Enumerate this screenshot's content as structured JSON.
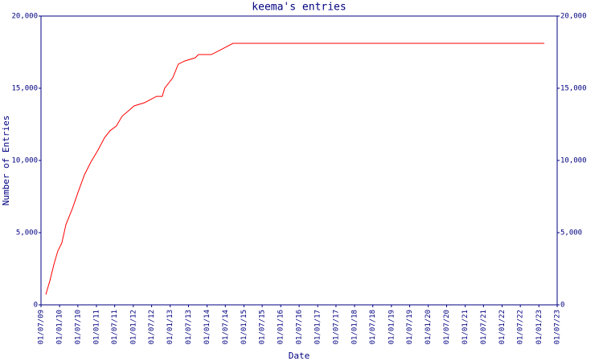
{
  "chart_data": {
    "type": "line",
    "title": "keema's entries",
    "xlabel": "Date",
    "ylabel": "Number of Entries",
    "xlim": [
      "2009-07-01",
      "2023-07-01"
    ],
    "xticks": [
      {
        "value": "2009-07-01",
        "label": "01/07/09"
      },
      {
        "value": "2010-01-01",
        "label": "01/01/10"
      },
      {
        "value": "2010-07-01",
        "label": "01/07/10"
      },
      {
        "value": "2011-01-01",
        "label": "01/01/11"
      },
      {
        "value": "2011-07-01",
        "label": "01/07/11"
      },
      {
        "value": "2012-01-01",
        "label": "01/01/12"
      },
      {
        "value": "2012-07-01",
        "label": "01/07/12"
      },
      {
        "value": "2013-01-01",
        "label": "01/01/13"
      },
      {
        "value": "2013-07-01",
        "label": "01/07/13"
      },
      {
        "value": "2014-01-01",
        "label": "01/01/14"
      },
      {
        "value": "2014-07-01",
        "label": "01/07/14"
      },
      {
        "value": "2015-01-01",
        "label": "01/01/15"
      },
      {
        "value": "2015-07-01",
        "label": "01/07/15"
      },
      {
        "value": "2016-01-01",
        "label": "01/01/16"
      },
      {
        "value": "2016-07-01",
        "label": "01/07/16"
      },
      {
        "value": "2017-01-01",
        "label": "01/01/17"
      },
      {
        "value": "2017-07-01",
        "label": "01/07/17"
      },
      {
        "value": "2018-01-01",
        "label": "01/01/18"
      },
      {
        "value": "2018-07-01",
        "label": "01/07/18"
      },
      {
        "value": "2019-01-01",
        "label": "01/01/19"
      },
      {
        "value": "2019-07-01",
        "label": "01/07/19"
      },
      {
        "value": "2020-01-01",
        "label": "01/01/20"
      },
      {
        "value": "2020-07-01",
        "label": "01/07/20"
      },
      {
        "value": "2021-01-01",
        "label": "01/01/21"
      },
      {
        "value": "2021-07-01",
        "label": "01/07/21"
      },
      {
        "value": "2022-01-01",
        "label": "01/01/22"
      },
      {
        "value": "2022-07-01",
        "label": "01/07/22"
      },
      {
        "value": "2023-01-01",
        "label": "01/01/23"
      },
      {
        "value": "2023-07-01",
        "label": "01/07/23"
      }
    ],
    "ylim": [
      0,
      20000
    ],
    "yticks": [
      0,
      {
        "value": 5000,
        "label": "5,000"
      },
      {
        "value": 10000,
        "label": "10,000"
      },
      {
        "value": 15000,
        "label": "15,000"
      },
      {
        "value": 20000,
        "label": "20,000"
      }
    ],
    "x": [
      "2009-08-18",
      "2009-09-27",
      "2009-11-05",
      "2009-12-14",
      "2010-01-23",
      "2010-03-05",
      "2010-05-08",
      "2010-07-02",
      "2010-09-04",
      "2010-11-07",
      "2011-01-17",
      "2011-03-21",
      "2011-05-16",
      "2011-07-18",
      "2011-09-12",
      "2011-11-15",
      "2012-01-09",
      "2012-04-22",
      "2012-08-19",
      "2012-10-14",
      "2012-11-07",
      "2013-01-26",
      "2013-03-22",
      "2013-05-25",
      "2013-09-06",
      "2013-10-07",
      "2014-02-12",
      "2014-05-18",
      "2014-09-15",
      "2023-02-24"
    ],
    "series": [
      {
        "color": "#ff0000",
        "values": [
          720,
          1670,
          2780,
          3720,
          4280,
          5560,
          6670,
          7780,
          9000,
          9890,
          10720,
          11560,
          12060,
          12390,
          13060,
          13440,
          13780,
          14000,
          14440,
          14440,
          15000,
          15720,
          16670,
          16890,
          17110,
          17330,
          17330,
          17670,
          18110,
          18110
        ]
      }
    ]
  }
}
